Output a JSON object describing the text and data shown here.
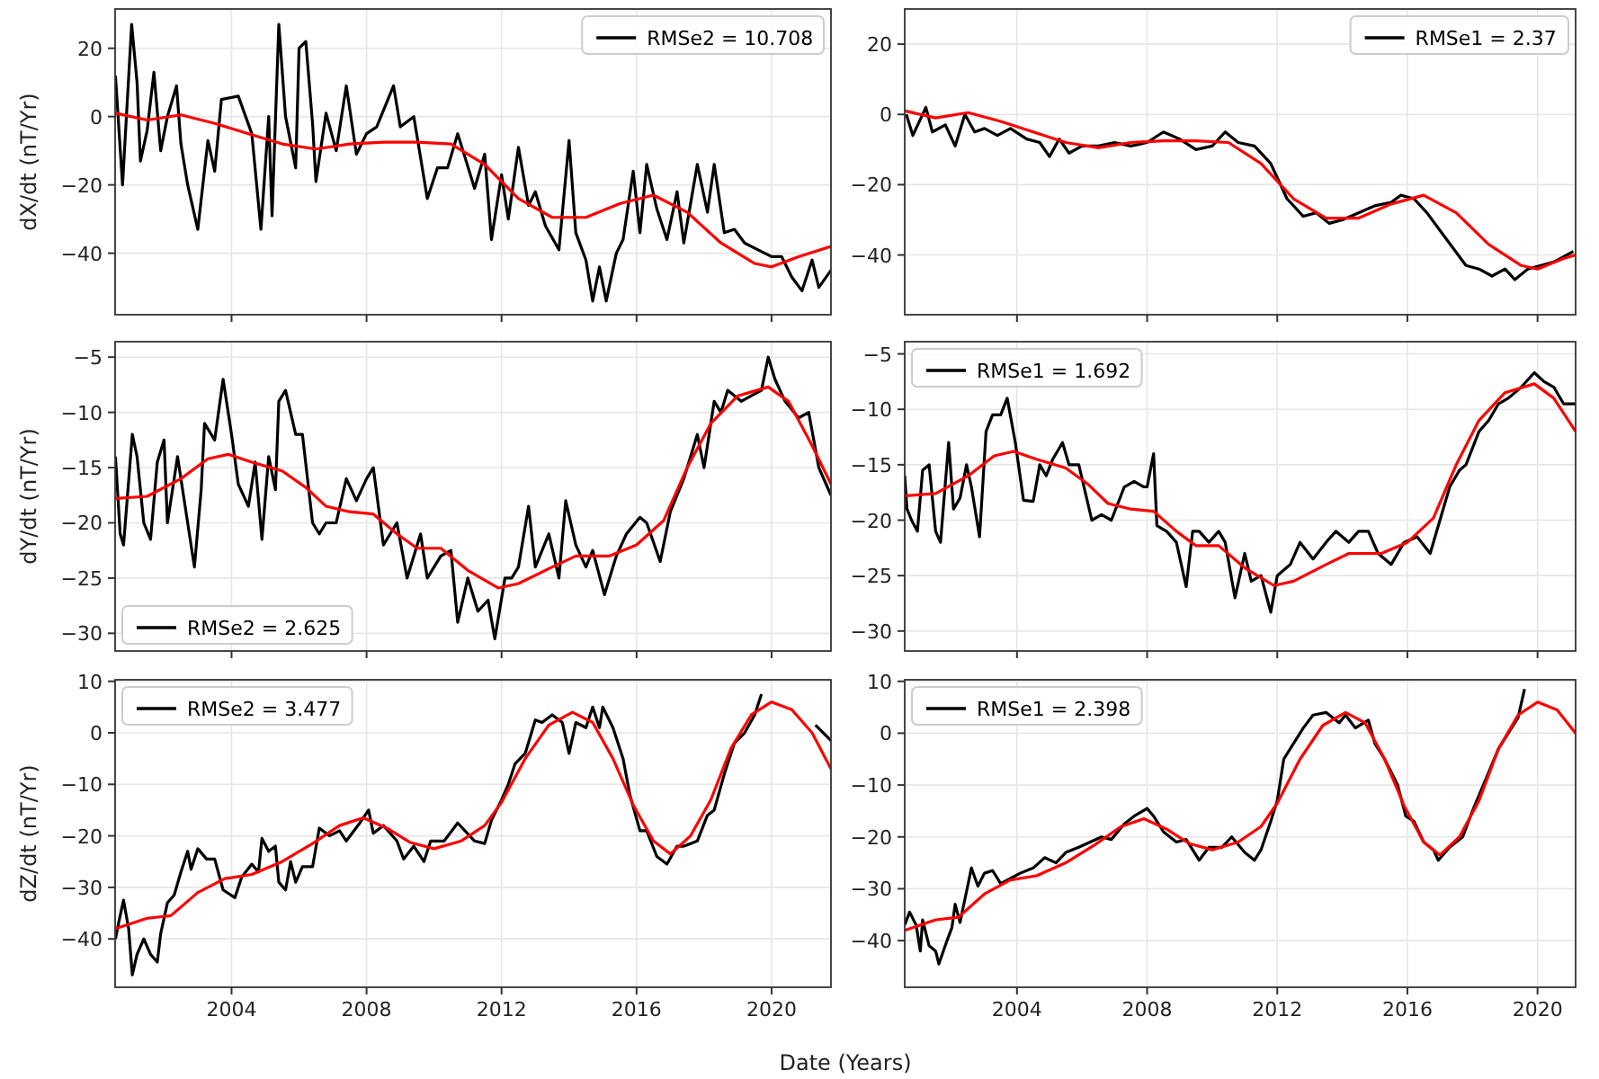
{
  "chart_data": [
    {
      "type": "line",
      "ylabel": "dX/dt (nT/Yr)",
      "xlim": [
        2000.55,
        2021.76
      ],
      "ylim": [
        -58,
        31.5
      ],
      "xticks": [
        2004,
        2008,
        2012,
        2016,
        2020
      ],
      "yticks": [
        -40,
        -20,
        0,
        20
      ],
      "grid": true,
      "legend": "top right",
      "tick_labels": "y",
      "series": [
        {
          "name": "RMSe2 = 10.708",
          "color": "#000000",
          "x": [
            2000.56,
            2000.77,
            2001.04,
            2001.2,
            2001.3,
            2001.5,
            2001.7,
            2001.9,
            2002.1,
            2002.37,
            2002.5,
            2002.7,
            2003.0,
            2003.3,
            2003.5,
            2003.7,
            2004.2,
            2004.6,
            2004.87,
            2005.1,
            2005.2,
            2005.4,
            2005.6,
            2005.9,
            2006.0,
            2006.2,
            2006.4,
            2006.5,
            2006.8,
            2007.1,
            2007.4,
            2007.7,
            2008.0,
            2008.3,
            2008.8,
            2009.0,
            2009.4,
            2009.8,
            2010.1,
            2010.4,
            2010.7,
            2011.2,
            2011.5,
            2011.7,
            2012.0,
            2012.2,
            2012.5,
            2012.8,
            2013.0,
            2013.3,
            2013.7,
            2014.0,
            2014.2,
            2014.5,
            2014.7,
            2014.9,
            2015.1,
            2015.4,
            2015.6,
            2015.9,
            2016.1,
            2016.3,
            2016.6,
            2016.9,
            2017.2,
            2017.4,
            2017.8,
            2018.1,
            2018.3,
            2018.6,
            2018.9,
            2019.2,
            2019.6,
            2020.0,
            2020.3,
            2020.6,
            2020.9,
            2021.2,
            2021.4,
            2021.76
          ],
          "values": [
            12,
            -20,
            27,
            10,
            -13,
            -4,
            13,
            -10,
            0,
            9,
            -8,
            -20,
            -33,
            -7,
            -16,
            5,
            6,
            -5,
            -33,
            0,
            -29,
            27,
            0,
            -15,
            20,
            22,
            -2,
            -19,
            1,
            -10,
            9,
            -11,
            -5,
            -3,
            9,
            -3,
            0,
            -24,
            -15,
            -15,
            -5,
            -21,
            -11,
            -36,
            -17,
            -30,
            -9,
            -26,
            -22,
            -32,
            -39,
            -7,
            -34,
            -42,
            -54,
            -44,
            -54,
            -40,
            -36,
            -16,
            -34,
            -14,
            -27,
            -36,
            -22,
            -37,
            -14,
            -28,
            -14,
            -34,
            -33,
            -37,
            -39,
            -41,
            -41,
            -47,
            -51,
            -42,
            -50,
            -45
          ]
        },
        {
          "color": "#ff0000",
          "x": [
            2000.56,
            2001.5,
            2002.5,
            2003.5,
            2004.5,
            2005.5,
            2006.5,
            2007.5,
            2008.5,
            2009.5,
            2010.5,
            2011.5,
            2012.5,
            2013.5,
            2014.5,
            2015.5,
            2016.5,
            2017.5,
            2018.5,
            2019.5,
            2020.0,
            2020.8,
            2021.76
          ],
          "values": [
            1,
            -1,
            0.5,
            -2,
            -5,
            -8,
            -9.5,
            -8,
            -7.5,
            -7.5,
            -8,
            -14,
            -24,
            -29.5,
            -29.5,
            -25.5,
            -23,
            -28,
            -37,
            -43,
            -44,
            -41,
            -38
          ]
        }
      ]
    },
    {
      "type": "line",
      "xlim": [
        2000.55,
        2021.17
      ],
      "ylim": [
        -57,
        30
      ],
      "xticks": [
        2004,
        2008,
        2012,
        2016,
        2020
      ],
      "yticks": [
        -40,
        -20,
        0,
        20
      ],
      "grid": true,
      "legend": "top right",
      "tick_labels": "y",
      "series": [
        {
          "name": "RMSe1 = 2.37",
          "color": "#000000",
          "x": [
            2000.6,
            2000.8,
            2001.0,
            2001.2,
            2001.4,
            2001.8,
            2002.1,
            2002.4,
            2002.7,
            2003.0,
            2003.4,
            2003.8,
            2004.3,
            2004.7,
            2005.0,
            2005.3,
            2005.6,
            2006.0,
            2006.5,
            2007.0,
            2007.5,
            2008.0,
            2008.5,
            2009.0,
            2009.5,
            2010.0,
            2010.4,
            2010.8,
            2011.3,
            2011.8,
            2012.3,
            2012.8,
            2013.2,
            2013.6,
            2014.0,
            2014.5,
            2015.0,
            2015.5,
            2015.8,
            2016.2,
            2016.6,
            2017.0,
            2017.4,
            2017.8,
            2018.2,
            2018.6,
            2019.0,
            2019.3,
            2019.7,
            2020.1,
            2020.5,
            2021.1
          ],
          "values": [
            0,
            -6,
            -2,
            2,
            -5,
            -3,
            -9,
            0,
            -5,
            -4,
            -6,
            -4,
            -7,
            -8,
            -12,
            -7,
            -11,
            -9,
            -9,
            -8,
            -9,
            -8,
            -5,
            -7,
            -10,
            -9,
            -5,
            -8,
            -9,
            -14,
            -24,
            -29,
            -28,
            -31,
            -30,
            -28,
            -26,
            -25,
            -23,
            -24,
            -28,
            -33,
            -38,
            -43,
            -44,
            -46,
            -44,
            -47,
            -44,
            -43,
            -42,
            -39
          ]
        },
        {
          "color": "#ff0000",
          "x": [
            2000.56,
            2001.5,
            2002.5,
            2003.5,
            2004.5,
            2005.5,
            2006.5,
            2007.5,
            2008.5,
            2009.5,
            2010.5,
            2011.5,
            2012.5,
            2013.5,
            2014.5,
            2015.5,
            2016.5,
            2017.5,
            2018.5,
            2019.5,
            2020.0,
            2020.8,
            2021.17
          ],
          "values": [
            1,
            -1,
            0.5,
            -2,
            -5,
            -8,
            -9.5,
            -8,
            -7.5,
            -7.5,
            -8,
            -14,
            -24,
            -29.5,
            -29.5,
            -25.5,
            -23,
            -28,
            -37,
            -43,
            -44,
            -41,
            -40
          ]
        }
      ]
    },
    {
      "type": "line",
      "ylabel": "dY/dt (nT/Yr)",
      "xlim": [
        2000.55,
        2021.76
      ],
      "ylim": [
        -31.6,
        -3.6
      ],
      "xticks": [
        2004,
        2008,
        2012,
        2016,
        2020
      ],
      "yticks": [
        -30,
        -25,
        -20,
        -15,
        -10,
        -5
      ],
      "grid": true,
      "legend": "bottom left",
      "tick_labels": "y",
      "series": [
        {
          "name": "RMSe2 = 2.625",
          "color": "#000000",
          "x": [
            2000.56,
            2000.7,
            2000.8,
            2001.06,
            2001.2,
            2001.4,
            2001.6,
            2001.8,
            2002.0,
            2002.1,
            2002.4,
            2002.6,
            2002.9,
            2003.1,
            2003.2,
            2003.5,
            2003.75,
            2004.0,
            2004.2,
            2004.5,
            2004.7,
            2004.9,
            2005.1,
            2005.3,
            2005.4,
            2005.6,
            2005.9,
            2006.1,
            2006.4,
            2006.6,
            2006.8,
            2007.1,
            2007.4,
            2007.7,
            2008.0,
            2008.2,
            2008.5,
            2008.9,
            2009.2,
            2009.6,
            2009.8,
            2010.2,
            2010.5,
            2010.7,
            2011.0,
            2011.3,
            2011.6,
            2011.8,
            2012.1,
            2012.3,
            2012.5,
            2012.8,
            2013.0,
            2013.4,
            2013.7,
            2013.9,
            2014.2,
            2014.5,
            2014.7,
            2015.05,
            2015.4,
            2015.7,
            2016.1,
            2016.3,
            2016.7,
            2017.0,
            2017.4,
            2017.8,
            2018.0,
            2018.3,
            2018.5,
            2018.7,
            2019.1,
            2019.4,
            2019.7,
            2019.9,
            2020.1,
            2020.4,
            2020.8,
            2021.1,
            2021.4,
            2021.76
          ],
          "values": [
            -14,
            -21,
            -22,
            -12,
            -14,
            -20,
            -21.5,
            -14.5,
            -12.5,
            -20,
            -14,
            -18,
            -24,
            -17,
            -11,
            -12.5,
            -7,
            -12,
            -16.5,
            -18.5,
            -14.5,
            -21.5,
            -14,
            -17,
            -9,
            -8,
            -12,
            -12,
            -20,
            -21,
            -20,
            -20,
            -16,
            -18,
            -16,
            -15,
            -22,
            -20,
            -25,
            -21,
            -25,
            -23,
            -22.5,
            -29,
            -25,
            -28,
            -27,
            -30.5,
            -25,
            -25,
            -24,
            -18.5,
            -24,
            -21,
            -25,
            -18,
            -22,
            -24,
            -22.5,
            -26.5,
            -23,
            -21,
            -19.5,
            -20,
            -23.5,
            -19,
            -16,
            -12,
            -15,
            -9,
            -10,
            -8,
            -9,
            -8.5,
            -8,
            -5,
            -7,
            -9,
            -10.5,
            -10,
            -15,
            -17.5
          ]
        },
        {
          "color": "#ff0000",
          "x": [
            2000.56,
            2001.5,
            2002.5,
            2003.3,
            2003.9,
            2004.6,
            2005.5,
            2006.2,
            2006.8,
            2007.5,
            2008.2,
            2008.9,
            2009.5,
            2010.2,
            2011.0,
            2011.9,
            2012.5,
            2013.5,
            2014.2,
            2015.2,
            2016.0,
            2016.8,
            2017.5,
            2018.2,
            2019.0,
            2019.9,
            2020.5,
            2021.2,
            2021.76
          ],
          "values": [
            -17.8,
            -17.6,
            -16,
            -14.2,
            -13.8,
            -14.5,
            -15.3,
            -16.8,
            -18.5,
            -19,
            -19.2,
            -21,
            -22.3,
            -22.3,
            -24.3,
            -25.9,
            -25.5,
            -24,
            -23,
            -23,
            -22,
            -19.8,
            -15,
            -11,
            -8.5,
            -7.7,
            -9,
            -13,
            -16.5
          ]
        }
      ]
    },
    {
      "type": "line",
      "xlim": [
        2000.55,
        2021.17
      ],
      "ylim": [
        -31.8,
        -3.9
      ],
      "xticks": [
        2004,
        2008,
        2012,
        2016,
        2020
      ],
      "yticks": [
        -30,
        -25,
        -20,
        -15,
        -10,
        -5
      ],
      "grid": true,
      "legend": "top left",
      "tick_labels": "y",
      "series": [
        {
          "name": "RMSe1 = 1.692",
          "color": "#000000",
          "x": [
            2000.55,
            2000.62,
            2000.76,
            2000.94,
            2001.1,
            2001.3,
            2001.5,
            2001.65,
            2001.9,
            2002.05,
            2002.25,
            2002.45,
            2002.6,
            2002.85,
            2003.05,
            2003.25,
            2003.5,
            2003.7,
            2003.95,
            2004.2,
            2004.5,
            2004.7,
            2004.9,
            2005.1,
            2005.4,
            2005.6,
            2005.9,
            2006.1,
            2006.3,
            2006.6,
            2006.9,
            2007.3,
            2007.6,
            2007.9,
            2008.0,
            2008.2,
            2008.3,
            2008.6,
            2008.9,
            2009.2,
            2009.4,
            2009.6,
            2009.9,
            2010.2,
            2010.4,
            2010.7,
            2011.0,
            2011.2,
            2011.5,
            2011.8,
            2012.0,
            2012.4,
            2012.7,
            2013.1,
            2013.5,
            2013.8,
            2014.2,
            2014.5,
            2014.8,
            2015.1,
            2015.5,
            2015.9,
            2016.3,
            2016.7,
            2017.0,
            2017.3,
            2017.6,
            2017.8,
            2018.2,
            2018.5,
            2018.8,
            2019.1,
            2019.5,
            2019.9,
            2020.2,
            2020.5,
            2020.8,
            2021.17
          ],
          "values": [
            -16,
            -19,
            -20,
            -21,
            -15.5,
            -15,
            -21,
            -22,
            -13,
            -19,
            -18,
            -15,
            -17,
            -21.5,
            -12,
            -10.5,
            -10.5,
            -9,
            -13,
            -18.2,
            -18.3,
            -15,
            -16,
            -14.5,
            -13,
            -15,
            -15,
            -17.5,
            -20,
            -19.5,
            -20,
            -17,
            -16.5,
            -17,
            -17,
            -14,
            -20.5,
            -21,
            -22,
            -26,
            -21,
            -21,
            -22,
            -21,
            -22,
            -27,
            -23,
            -25.5,
            -25,
            -28.3,
            -25,
            -24,
            -22,
            -23.5,
            -22,
            -21,
            -22,
            -21,
            -21,
            -23,
            -24,
            -22,
            -21.5,
            -23,
            -20,
            -17,
            -15.5,
            -15,
            -12,
            -11,
            -9.5,
            -9,
            -8,
            -6.7,
            -7.5,
            -8,
            -9.5,
            -9.5
          ]
        },
        {
          "color": "#ff0000",
          "x": [
            2000.56,
            2001.5,
            2002.5,
            2003.3,
            2003.9,
            2004.6,
            2005.5,
            2006.2,
            2006.8,
            2007.5,
            2008.2,
            2008.9,
            2009.5,
            2010.2,
            2011.0,
            2011.9,
            2012.5,
            2013.5,
            2014.2,
            2015.2,
            2016.0,
            2016.8,
            2017.5,
            2018.2,
            2019.0,
            2019.9,
            2020.5,
            2021.17
          ],
          "values": [
            -17.8,
            -17.6,
            -16,
            -14.2,
            -13.8,
            -14.5,
            -15.3,
            -16.8,
            -18.5,
            -19,
            -19.2,
            -21,
            -22.3,
            -22.3,
            -24.3,
            -25.9,
            -25.5,
            -24,
            -23,
            -23,
            -22,
            -19.8,
            -15,
            -11,
            -8.5,
            -7.7,
            -9,
            -12
          ]
        }
      ]
    },
    {
      "type": "line",
      "ylabel": "dZ/dt (nT/Yr)",
      "xlabel": "Date (Years)",
      "xlim": [
        2000.55,
        2021.76
      ],
      "ylim": [
        -49.4,
        10.3
      ],
      "xticks": [
        2004,
        2008,
        2012,
        2016,
        2020
      ],
      "yticks": [
        -40,
        -30,
        -20,
        -10,
        0,
        10
      ],
      "grid": true,
      "legend": "top left",
      "series": [
        {
          "name": "RMSe2 = 3.477",
          "color": "#000000",
          "x": [
            2000.56,
            2000.65,
            2000.8,
            2000.95,
            2001.06,
            2001.2,
            2001.4,
            2001.6,
            2001.8,
            2001.9,
            2002.1,
            2002.3,
            2002.5,
            2002.7,
            2002.8,
            2003.0,
            2003.26,
            2003.5,
            2003.75,
            2004.1,
            2004.3,
            2004.6,
            2004.8,
            2004.9,
            2005.1,
            2005.3,
            2005.4,
            2005.6,
            2005.75,
            2005.9,
            2006.1,
            2006.4,
            2006.6,
            2006.9,
            2007.2,
            2007.4,
            2007.8,
            2008.06,
            2008.2,
            2008.5,
            2008.9,
            2009.1,
            2009.4,
            2009.7,
            2009.9,
            2010.3,
            2010.7,
            2011.2,
            2011.5,
            2011.7,
            2012.0,
            2012.2,
            2012.4,
            2012.7,
            2013.0,
            2013.2,
            2013.5,
            2013.8,
            2014.0,
            2014.2,
            2014.5,
            2014.7,
            2014.9,
            2015.0,
            2015.3,
            2015.6,
            2015.8,
            2016.1,
            2016.3,
            2016.6,
            2016.9,
            2017.2,
            2017.4,
            2017.8,
            2018.1,
            2018.3,
            2018.6,
            2018.9,
            2019.2,
            2019.5,
            2019.7,
            2020.5,
            2021.3,
            2021.76
          ],
          "values": [
            -40,
            -37,
            -32.5,
            -38,
            -47,
            -43,
            -40,
            -43,
            -44.5,
            -39,
            -33,
            -31.5,
            -27,
            -23,
            -26.5,
            -22.5,
            -24.5,
            -24.5,
            -30.5,
            -32,
            -28,
            -25.5,
            -27,
            -20.5,
            -23,
            -22,
            -29,
            -30.5,
            -25,
            -29,
            -26,
            -26,
            -18.5,
            -20,
            -19,
            -21,
            -17.5,
            -15,
            -19.5,
            -18,
            -21,
            -24.5,
            -22,
            -25,
            -21,
            -21,
            -17.5,
            -21,
            -21.5,
            -17,
            -13,
            -10,
            -6,
            -4,
            2.5,
            2,
            3.5,
            2,
            -4,
            2,
            1,
            5,
            1,
            5,
            1,
            -5,
            -12,
            -19,
            -19,
            -24,
            -25.5,
            -22,
            -22,
            -21,
            -16,
            -15,
            -8,
            -2,
            0,
            3.5,
            7.5,
            null,
            1.5,
            -1.5
          ]
        },
        {
          "color": "#ff0000",
          "x": [
            2000.56,
            2001.5,
            2002.2,
            2003.0,
            2003.8,
            2004.6,
            2005.5,
            2006.4,
            2007.2,
            2007.9,
            2008.6,
            2009.3,
            2010.0,
            2010.8,
            2011.5,
            2012.0,
            2012.7,
            2013.4,
            2014.1,
            2014.7,
            2015.3,
            2015.9,
            2016.5,
            2017.0,
            2017.6,
            2018.2,
            2018.8,
            2019.4,
            2020.0,
            2020.6,
            2021.2,
            2021.76
          ],
          "values": [
            -38,
            -36,
            -35.5,
            -31,
            -28.3,
            -27.5,
            -25,
            -21.5,
            -18,
            -16.5,
            -18.5,
            -21.3,
            -22.5,
            -21,
            -18,
            -13.5,
            -5,
            1.5,
            4,
            2,
            -5,
            -14,
            -21,
            -23.5,
            -20,
            -13,
            -3,
            3.5,
            6,
            4.5,
            0,
            -7
          ]
        }
      ]
    },
    {
      "type": "line",
      "xlim": [
        2000.55,
        2021.17
      ],
      "ylim": [
        -49,
        10.3
      ],
      "xticks": [
        2004,
        2008,
        2012,
        2016,
        2020
      ],
      "yticks": [
        -40,
        -30,
        -20,
        -10,
        0,
        10
      ],
      "grid": true,
      "legend": "top left",
      "series": [
        {
          "name": "RMSe1 = 2.398",
          "color": "#000000",
          "x": [
            2000.55,
            2000.7,
            2000.9,
            2001.03,
            2001.1,
            2001.3,
            2001.5,
            2001.6,
            2001.85,
            2002.0,
            2002.1,
            2002.25,
            2002.4,
            2002.6,
            2002.8,
            2003.0,
            2003.25,
            2003.5,
            2003.8,
            2004.1,
            2004.5,
            2004.85,
            2005.2,
            2005.5,
            2005.9,
            2006.25,
            2006.6,
            2006.9,
            2007.3,
            2007.6,
            2008.0,
            2008.2,
            2008.5,
            2008.9,
            2009.2,
            2009.6,
            2009.9,
            2010.3,
            2010.6,
            2011.0,
            2011.3,
            2011.5,
            2011.8,
            2012.0,
            2012.2,
            2012.5,
            2012.8,
            2013.1,
            2013.5,
            2013.9,
            2014.1,
            2014.4,
            2014.8,
            2015.0,
            2015.3,
            2015.7,
            2015.95,
            2016.2,
            2016.5,
            2016.8,
            2016.95,
            2017.3,
            2017.7,
            2018.0,
            2018.4,
            2018.8,
            2019.1,
            2019.4,
            2019.6
          ],
          "values": [
            -37,
            -34.5,
            -37,
            -42,
            -36,
            -41,
            -42,
            -44.5,
            -40,
            -37.5,
            -33,
            -36.5,
            -32,
            -26,
            -29.5,
            -27,
            -26.5,
            -29,
            -28,
            -27,
            -26,
            -24,
            -25,
            -23,
            -22,
            -21,
            -20,
            -20.5,
            -17.5,
            -16,
            -14.5,
            -16,
            -19,
            -21,
            -20.5,
            -24.5,
            -22,
            -22,
            -20,
            -23,
            -24.5,
            -22.5,
            -17,
            -13,
            -5,
            -2,
            1,
            3.5,
            4,
            2,
            3.5,
            1,
            2.5,
            -2,
            -5,
            -10,
            -16,
            -17,
            -21,
            -22.5,
            -24.5,
            -22,
            -20,
            -15,
            -9,
            -3,
            0,
            3,
            8.5
          ]
        },
        {
          "color": "#ff0000",
          "x": [
            2000.56,
            2001.5,
            2002.2,
            2003.0,
            2003.8,
            2004.6,
            2005.5,
            2006.4,
            2007.2,
            2007.9,
            2008.6,
            2009.3,
            2010.0,
            2010.8,
            2011.5,
            2012.0,
            2012.7,
            2013.4,
            2014.1,
            2014.7,
            2015.3,
            2015.9,
            2016.5,
            2017.0,
            2017.6,
            2018.2,
            2018.8,
            2019.4,
            2020.0,
            2020.6,
            2021.17
          ],
          "values": [
            -38,
            -36,
            -35.5,
            -31,
            -28.3,
            -27.5,
            -25,
            -21.5,
            -18,
            -16.5,
            -18.5,
            -21.3,
            -22.5,
            -21,
            -18,
            -13.5,
            -5,
            1.5,
            4,
            2,
            -5,
            -14,
            -21,
            -23.5,
            -20,
            -13,
            -3,
            3.5,
            6,
            4.5,
            0
          ]
        }
      ]
    }
  ]
}
